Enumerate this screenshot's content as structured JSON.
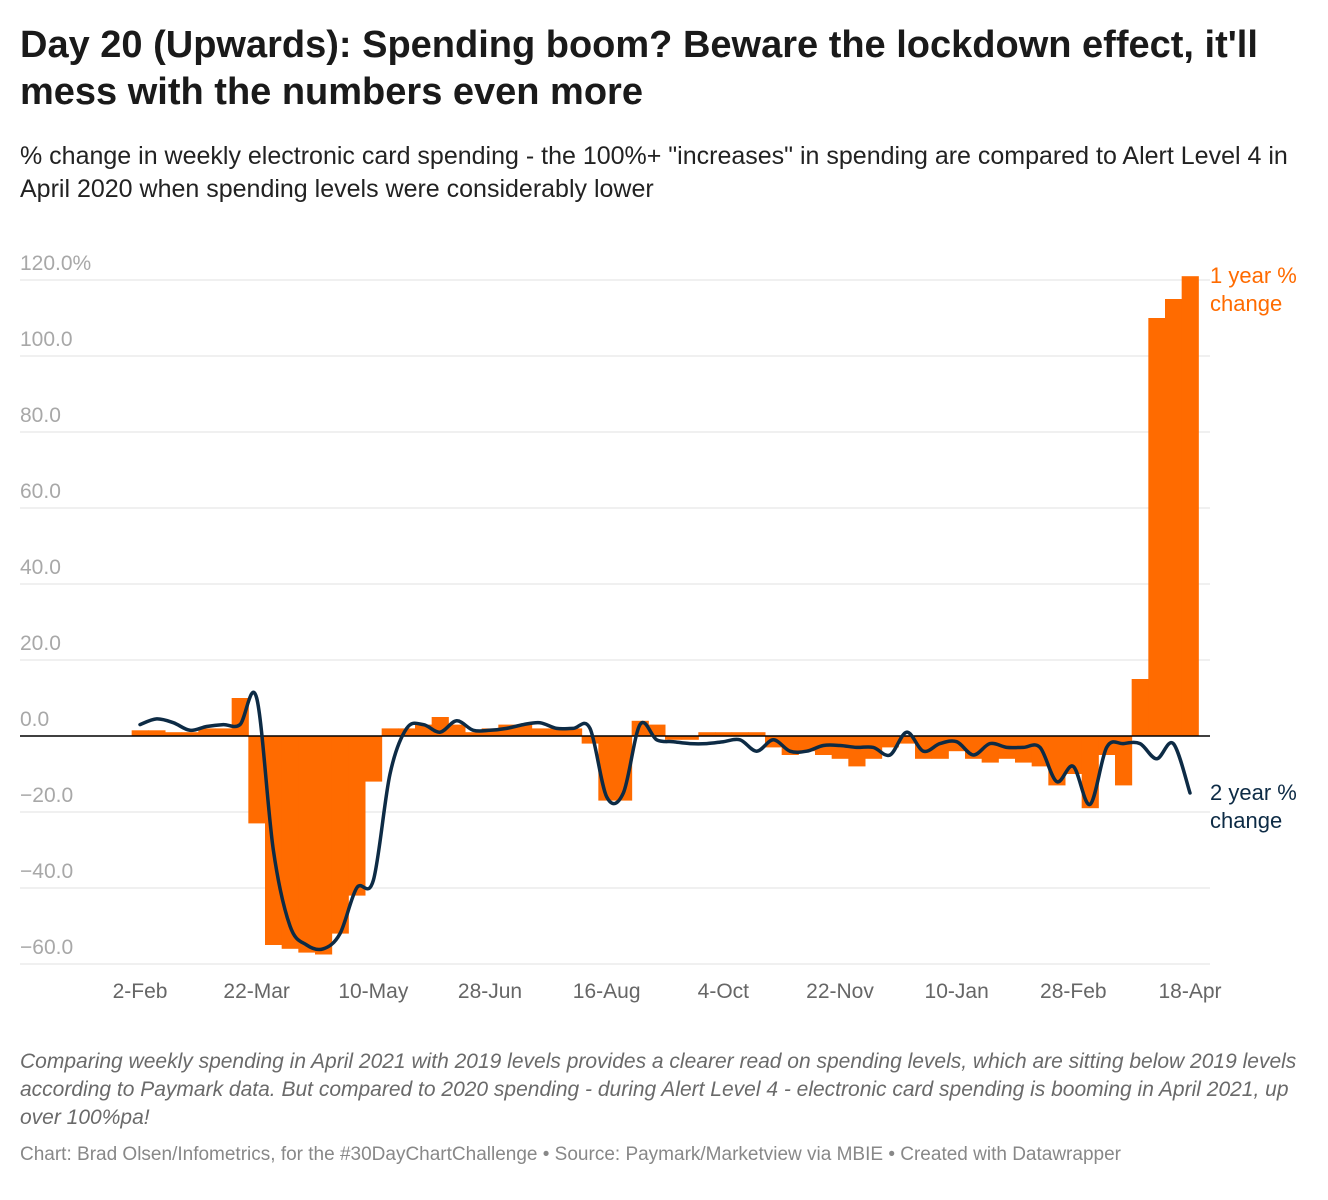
{
  "chart_data": {
    "type": "bar-line",
    "title": "Day 20 (Upwards): Spending boom? Beware the lockdown effect, it'll mess with the numbers even more",
    "subtitle": "% change in weekly electronic card spending - the 100%+ \"increases\" in spending are compared to Alert Level 4 in April 2020 when spending levels were considerably lower",
    "notes": "Comparing weekly spending in April 2021 with 2019 levels provides a clearer read on spending levels, which are sitting below 2019 levels according to Paymark data. But compared to 2020 spending - during Alert Level 4 - electronic card spending is booming in April 2021, up over 100%pa!",
    "credits": "Chart: Brad Olsen/Infometrics, for the #30DayChartChallenge • Source: Paymark/Marketview via MBIE • Created with Datawrapper",
    "categories": [
      "2-Feb",
      null,
      null,
      null,
      null,
      null,
      null,
      "22-Mar",
      null,
      null,
      null,
      null,
      null,
      null,
      "10-May",
      null,
      null,
      null,
      null,
      null,
      null,
      "28-Jun",
      null,
      null,
      null,
      null,
      null,
      null,
      "16-Aug",
      null,
      null,
      null,
      null,
      null,
      null,
      "4-Oct",
      null,
      null,
      null,
      null,
      null,
      null,
      "22-Nov",
      null,
      null,
      null,
      null,
      null,
      null,
      "10-Jan",
      null,
      null,
      null,
      null,
      null,
      null,
      "28-Feb",
      null,
      null,
      null,
      null,
      null,
      null,
      "18-Apr"
    ],
    "series": [
      {
        "name": "1 year % change",
        "color": "#ff6b00",
        "kind": "bar",
        "values": [
          1.5,
          1.5,
          1,
          1,
          2,
          2,
          10,
          -23,
          -55,
          -56,
          -57,
          -57.5,
          -52,
          -42,
          -12,
          2,
          2,
          3,
          5,
          3,
          1,
          2,
          3,
          3,
          2,
          2,
          2,
          -2,
          -17,
          -17,
          4,
          3,
          -1,
          -1,
          1,
          1,
          1,
          1,
          -3,
          -5,
          -4,
          -5,
          -6,
          -8,
          -6,
          -3,
          -2,
          -6,
          -6,
          -4,
          -6,
          -7,
          -6,
          -7,
          -8,
          -13,
          -10,
          -19,
          -5,
          -13,
          15,
          110,
          115,
          121
        ]
      },
      {
        "name": "2 year % change",
        "color": "#0d2b45",
        "kind": "line",
        "values": [
          3,
          4.5,
          3.5,
          1.5,
          2.5,
          3,
          3,
          10,
          -30,
          -50,
          -55,
          -56,
          -52,
          -40,
          -38,
          -10,
          2,
          3,
          1,
          4,
          1.5,
          1.5,
          2,
          3,
          3.5,
          2,
          2,
          2,
          -16,
          -15,
          3,
          -1,
          -1.5,
          -2,
          -2,
          -1.5,
          -1,
          -4,
          -1,
          -4,
          -4,
          -2.5,
          -2.5,
          -3,
          -3,
          -5,
          1,
          -4,
          -2,
          -1.5,
          -5,
          -2,
          -3,
          -3,
          -3,
          -12,
          -8,
          -18,
          -3,
          -2,
          -2,
          -6,
          -2,
          -15
        ]
      }
    ],
    "ylim": [
      -60,
      120
    ],
    "yticks": [
      {
        "value": 120,
        "label": "120.0%"
      },
      {
        "value": 100,
        "label": "100.0"
      },
      {
        "value": 80,
        "label": "80.0"
      },
      {
        "value": 60,
        "label": "60.0"
      },
      {
        "value": 40,
        "label": "40.0"
      },
      {
        "value": 20,
        "label": "20.0"
      },
      {
        "value": 0,
        "label": "0.0"
      },
      {
        "value": -20,
        "label": "−20.0"
      },
      {
        "value": -40,
        "label": "−40.0"
      },
      {
        "value": -60,
        "label": "−60.0"
      }
    ],
    "grid": true
  }
}
